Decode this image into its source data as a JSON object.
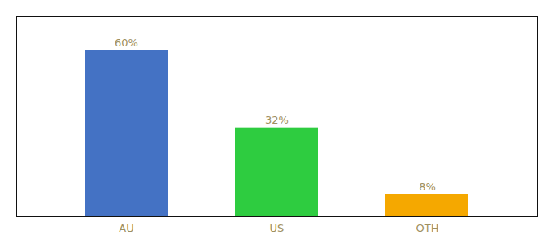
{
  "chart_data": {
    "type": "bar",
    "categories": [
      "AU",
      "US",
      "OTH"
    ],
    "values": [
      60,
      32,
      8
    ],
    "value_labels": [
      "60%",
      "32%",
      "8%"
    ],
    "colors": [
      "#4472c4",
      "#2ecc40",
      "#f5a800"
    ],
    "ylim": [
      0,
      72
    ],
    "data_labels": true,
    "tick_labels": "x",
    "grid": false
  }
}
